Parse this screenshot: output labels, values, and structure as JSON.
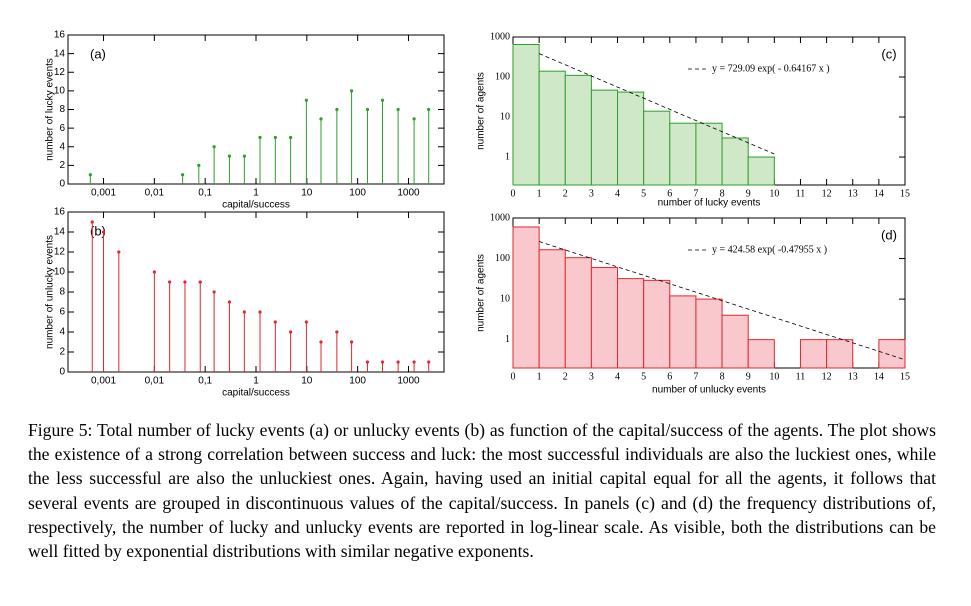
{
  "chart_data": [
    {
      "type": "stem",
      "panel_label": "(a)",
      "color": "#2e9e2e",
      "x": [
        0.00055,
        0.036,
        0.075,
        0.15,
        0.3,
        0.59,
        1.2,
        2.4,
        4.8,
        9.8,
        19,
        39,
        76,
        156,
        308,
        625,
        1290,
        2500
      ],
      "values": [
        1,
        1,
        2,
        4,
        3,
        3,
        5,
        5,
        5,
        9,
        7,
        8,
        10,
        8,
        9,
        8,
        7,
        8
      ],
      "xlabel": "capital/success",
      "ylabel": "number of lucky events",
      "xscale": "log",
      "xlim": [
        0.0002,
        5000
      ],
      "xticks": [
        {
          "value": 0.001,
          "label": "0,001"
        },
        {
          "value": 0.01,
          "label": "0,01"
        },
        {
          "value": 0.1,
          "label": "0,1"
        },
        1,
        10,
        100,
        1000
      ],
      "ylim": [
        0,
        16
      ],
      "yticks": [
        0,
        2,
        4,
        6,
        8,
        10,
        12,
        14,
        16
      ]
    },
    {
      "type": "stem",
      "panel_label": "(b)",
      "color": "#e0282e",
      "x": [
        0.0006,
        0.001,
        0.002,
        0.01,
        0.02,
        0.04,
        0.08,
        0.15,
        0.3,
        0.59,
        1.2,
        2.4,
        4.8,
        9.8,
        19,
        39,
        76,
        156,
        308,
        625,
        1290,
        2500
      ],
      "values": [
        15,
        14,
        12,
        10,
        9,
        9,
        9,
        8,
        7,
        6,
        6,
        5,
        4,
        5,
        3,
        4,
        3,
        1,
        1,
        1,
        1,
        1
      ],
      "xlabel": "capital/success",
      "ylabel": "number of unlucky events",
      "xscale": "log",
      "xlim": [
        0.0002,
        5000
      ],
      "xticks": [
        {
          "value": 0.001,
          "label": "0,001"
        },
        {
          "value": 0.01,
          "label": "0,01"
        },
        {
          "value": 0.1,
          "label": "0,1"
        },
        1,
        10,
        100,
        1000
      ],
      "ylim": [
        0,
        16
      ],
      "yticks": [
        0,
        2,
        4,
        6,
        8,
        10,
        12,
        14,
        16
      ]
    },
    {
      "type": "histogram",
      "panel_label": "(c)",
      "color": "#2e9e2e",
      "fill": "#cfe8c8",
      "bins": [
        0,
        1,
        2,
        3,
        4,
        5,
        6,
        7,
        8,
        9,
        10,
        11,
        12,
        13,
        14,
        15
      ],
      "values": [
        650,
        140,
        110,
        47,
        42,
        14,
        7,
        7,
        3,
        1,
        0,
        0,
        0,
        0,
        0
      ],
      "xlabel": "number of lucky events",
      "ylabel": "number of agents",
      "yscale": "log",
      "xlim": [
        0,
        15
      ],
      "xticks": [
        0,
        1,
        2,
        3,
        4,
        5,
        6,
        7,
        8,
        9,
        10,
        11,
        12,
        13,
        14,
        15
      ],
      "ylim": [
        0.2,
        1000
      ],
      "yticks": [
        1,
        10,
        100,
        1000
      ],
      "fit": {
        "a": 729.09,
        "b": -0.64167,
        "range": [
          1,
          10
        ],
        "label": "y = 729.09 exp( - 0.64167 x )"
      }
    },
    {
      "type": "histogram",
      "panel_label": "(d)",
      "color": "#e0282e",
      "fill": "#f8c8cc",
      "bins": [
        0,
        1,
        2,
        3,
        4,
        5,
        6,
        7,
        8,
        9,
        10,
        11,
        12,
        13,
        14,
        15
      ],
      "values": [
        600,
        165,
        105,
        60,
        32,
        29,
        12,
        10,
        4,
        1,
        0,
        1,
        1,
        0,
        1
      ],
      "xlabel": "number of unlucky events",
      "ylabel": "number of agents",
      "yscale": "log",
      "xlim": [
        0,
        15
      ],
      "xticks": [
        0,
        1,
        2,
        3,
        4,
        5,
        6,
        7,
        8,
        9,
        10,
        11,
        12,
        13,
        14,
        15
      ],
      "ylim": [
        0.2,
        1000
      ],
      "yticks": [
        1,
        10,
        100,
        1000
      ],
      "fit": {
        "a": 424.58,
        "b": -0.47955,
        "range": [
          1,
          15
        ],
        "label": "y = 424.58 exp( -0.47955 x )"
      }
    }
  ],
  "caption": "Figure 5: Total number of lucky events (a) or unlucky events (b) as function of the capital/success of the agents. The plot shows the existence of a strong correlation between success and luck: the most successful individuals are also the luckiest ones, while the less successful are also the unluckiest ones. Again, having used an initial capital equal for all the agents, it follows that several events are grouped in discontinuous values of the capital/success. In panels (c) and (d) the frequency distributions of, respectively, the number of lucky and unlucky events are reported in log-linear scale. As visible, both the distributions can be well fitted by exponential distributions with similar negative exponents."
}
